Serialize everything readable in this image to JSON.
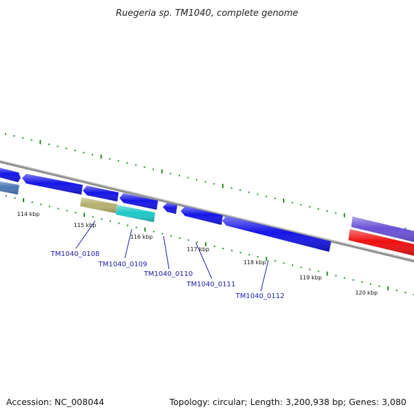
{
  "title": "Ruegeria sp. TM1040, complete genome",
  "footer": {
    "accession": "Accession: NC_008044",
    "summary": "Topology: circular; Length: 3,200,938 bp; Genes: 3,080"
  },
  "colors": {
    "backbone": "#8c8c8c",
    "tick": "#1e8c1e",
    "label": "#1a1aa6"
  },
  "scale": {
    "labels": [
      "114 kbp",
      "115 kbp",
      "116 kbp",
      "117 kbp",
      "118 kbp",
      "119 kbp",
      "120 kbp"
    ]
  },
  "genes": [
    {
      "name": "TM1040_0108",
      "color": "#b6b06e"
    },
    {
      "name": "TM1040_0109",
      "color": "#20c8c8"
    },
    {
      "name": "TM1040_0110",
      "color": "#1616e6"
    },
    {
      "name": "TM1040_0111",
      "color": "#1616e6"
    },
    {
      "name": "TM1040_0112",
      "color": "#1616e6"
    }
  ],
  "unlabeled_features": [
    {
      "color": "#1616e6"
    },
    {
      "color": "#4a78b4"
    },
    {
      "color": "#1616e6"
    },
    {
      "color": "#1616e6"
    },
    {
      "color": "#1616e6"
    },
    {
      "color": "#6a52d6"
    },
    {
      "color": "#ee1010"
    }
  ]
}
